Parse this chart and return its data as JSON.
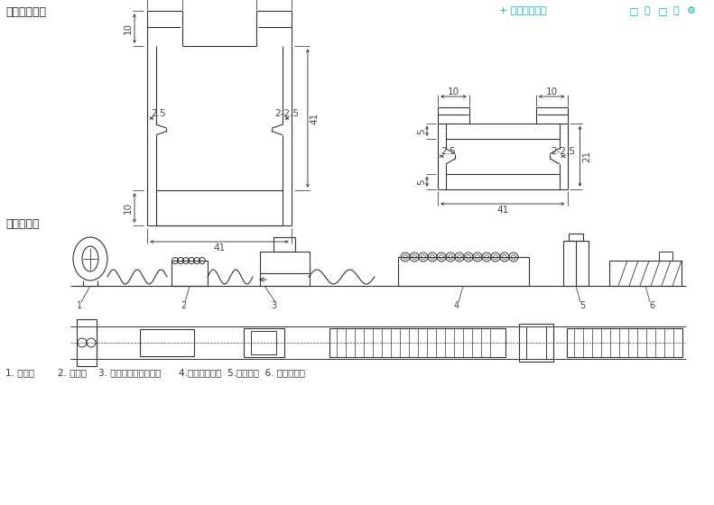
{
  "bg_color": "#ffffff",
  "title1": "产品截面图：",
  "title2": "设备示意图",
  "toolbar_text": "+ 添加到快剪辑",
  "caption": "1. 放料架        2. 调平机    3. 伺服送料冲孔、冲音      4.冷轧成形主机  5.剪断部分  6. 成品托料架",
  "dim_color": "#444444",
  "line_color": "#333333",
  "teal_color": "#00b4b4"
}
